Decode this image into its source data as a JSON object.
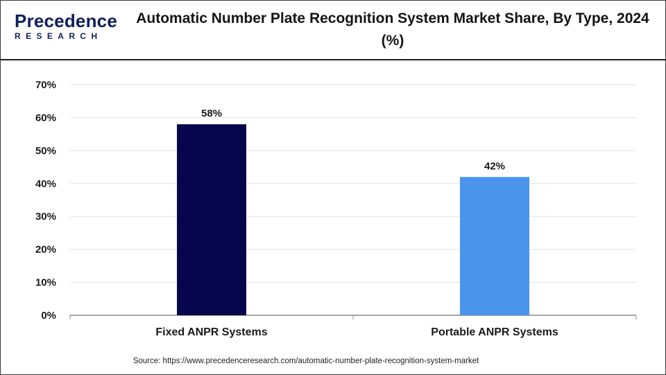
{
  "brand": {
    "logo_word": "Precedence",
    "logo_sub": "RESEARCH",
    "logo_colors": {
      "word": "#0e1f5b",
      "sub": "#0e1f5b",
      "accent": "#2f7fd8"
    }
  },
  "header": {
    "title": "Automatic Number Plate Recognition System Market Share, By Type, 2024 (%)"
  },
  "chart_data": {
    "type": "bar",
    "title": "Automatic Number Plate Recognition System Market Share, By Type, 2024 (%)",
    "xlabel": "",
    "ylabel": "",
    "categories": [
      "Fixed ANPR Systems",
      "Portable ANPR Systems"
    ],
    "values": [
      58,
      42
    ],
    "data_labels": [
      "58%",
      "42%"
    ],
    "bar_colors": [
      "#07064d",
      "#4a94ec"
    ],
    "ylim": [
      0,
      70
    ],
    "yticks": [
      0,
      10,
      20,
      30,
      40,
      50,
      60,
      70
    ],
    "ytick_labels": [
      "0%",
      "10%",
      "20%",
      "30%",
      "40%",
      "50%",
      "60%",
      "70%"
    ],
    "grid": true,
    "legend": "none"
  },
  "footer": {
    "source": "Source: https://www.precedenceresearch.com/automatic-number-plate-recognition-system-market"
  }
}
